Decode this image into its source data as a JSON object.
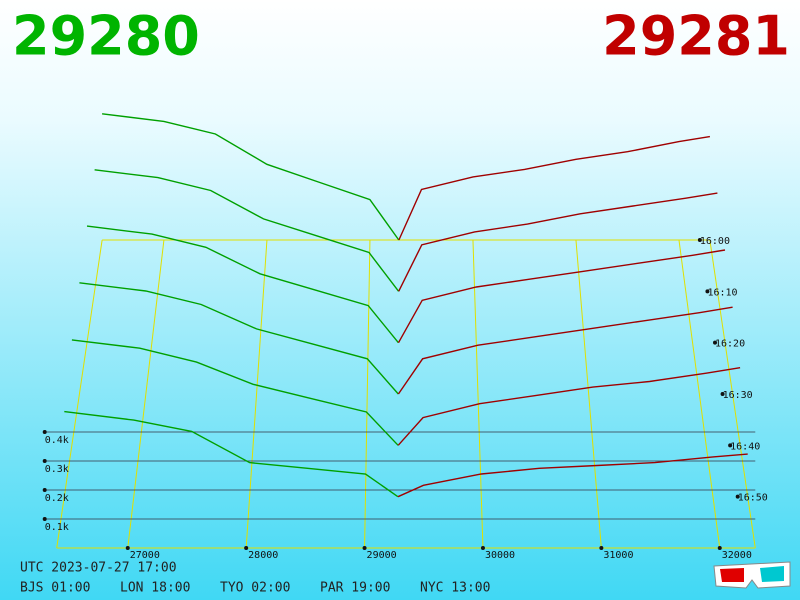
{
  "header": {
    "bid": 29280,
    "ask": 29281
  },
  "chart_data": {
    "type": "depth3d",
    "xlim": [
      26400,
      32300
    ],
    "xticks": [
      27000,
      28000,
      29000,
      30000,
      31000,
      32000
    ],
    "ylim": [
      0,
      500
    ],
    "yticks": [
      {
        "value": 100,
        "label": "0.1k"
      },
      {
        "value": 200,
        "label": "0.2k"
      },
      {
        "value": 300,
        "label": "0.3k"
      },
      {
        "value": 400,
        "label": "0.4k"
      }
    ],
    "zlim": [
      0,
      60
    ],
    "zticks": [
      {
        "value": 0,
        "label": "16:00"
      },
      {
        "value": 10,
        "label": "16:10"
      },
      {
        "value": 20,
        "label": "16:20"
      },
      {
        "value": 30,
        "label": "16:30"
      },
      {
        "value": 40,
        "label": "16:40"
      },
      {
        "value": 50,
        "label": "16:50"
      }
    ],
    "bid_prices": [
      26400,
      27000,
      27500,
      28000,
      28500,
      29000,
      29280
    ],
    "ask_prices": [
      29281,
      29500,
      30000,
      30500,
      31000,
      31500,
      32000,
      32300
    ],
    "bid_color": "#00a000",
    "ask_color": "#a00000",
    "grid_color": "#e0e000",
    "snapshots": [
      {
        "z": 0,
        "bids": [
          500,
          470,
          420,
          300,
          230,
          160,
          0
        ],
        "asks": [
          0,
          200,
          250,
          280,
          320,
          350,
          390,
          410
        ]
      },
      {
        "z": 10,
        "bids": [
          470,
          440,
          390,
          280,
          215,
          150,
          0
        ],
        "asks": [
          0,
          180,
          230,
          260,
          300,
          330,
          360,
          380
        ]
      },
      {
        "z": 20,
        "bids": [
          440,
          410,
          360,
          260,
          200,
          140,
          0
        ],
        "asks": [
          0,
          160,
          210,
          240,
          270,
          300,
          330,
          350
        ]
      },
      {
        "z": 30,
        "bids": [
          410,
          380,
          330,
          240,
          185,
          130,
          0
        ],
        "asks": [
          0,
          130,
          180,
          210,
          240,
          270,
          300,
          320
        ]
      },
      {
        "z": 40,
        "bids": [
          380,
          350,
          300,
          220,
          170,
          120,
          0
        ],
        "asks": [
          0,
          100,
          150,
          180,
          210,
          230,
          260,
          280
        ]
      },
      {
        "z": 50,
        "bids": [
          300,
          270,
          230,
          120,
          100,
          80,
          0
        ],
        "asks": [
          0,
          40,
          80,
          100,
          110,
          120,
          140,
          150
        ]
      }
    ]
  },
  "footer": {
    "utc": "UTC 2023-07-27 17:00",
    "zones": [
      "BJS 01:00",
      "LON 18:00",
      "TYO 02:00",
      "PAR 19:00",
      "NYC 13:00"
    ]
  }
}
